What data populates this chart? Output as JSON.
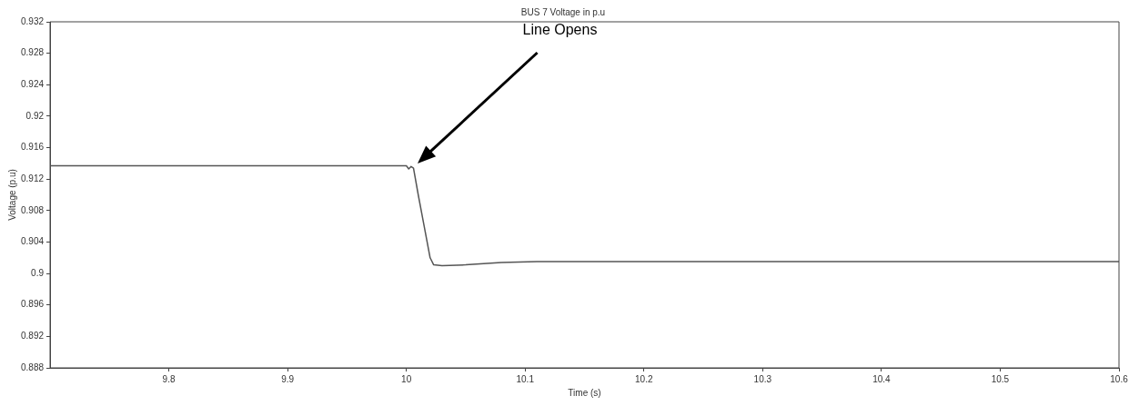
{
  "chart_data": {
    "type": "line",
    "title": "BUS 7 Voltage in p.u",
    "xlabel": "Time (s)",
    "ylabel": "Voltage (p.u)",
    "x": [
      9.7,
      9.8,
      9.9,
      9.98,
      10.0,
      10.002,
      10.004,
      10.006,
      10.01,
      10.015,
      10.02,
      10.023,
      10.03,
      10.05,
      10.08,
      10.11,
      10.2,
      10.3,
      10.4,
      10.5,
      10.6
    ],
    "series": [
      {
        "color": "#555555",
        "values": [
          0.9137,
          0.9137,
          0.9137,
          0.9137,
          0.9137,
          0.9133,
          0.9136,
          0.9134,
          0.91,
          0.906,
          0.902,
          0.9011,
          0.901,
          0.9011,
          0.9014,
          0.9015,
          0.9015,
          0.9015,
          0.9015,
          0.9015,
          0.9015
        ]
      }
    ],
    "xlim": [
      9.7,
      10.6
    ],
    "xticks": [
      9.8,
      9.9,
      10,
      10.1,
      10.2,
      10.3,
      10.4,
      10.5,
      10.6
    ],
    "ylim": [
      0.888,
      0.932
    ],
    "yticks": [
      0.888,
      0.892,
      0.896,
      0.9,
      0.904,
      0.908,
      0.912,
      0.916,
      0.92,
      0.924,
      0.928,
      0.932
    ],
    "grid": false,
    "legend": false,
    "marker": "none",
    "line_style": "solid",
    "annotations": [
      "Line Opens"
    ]
  }
}
